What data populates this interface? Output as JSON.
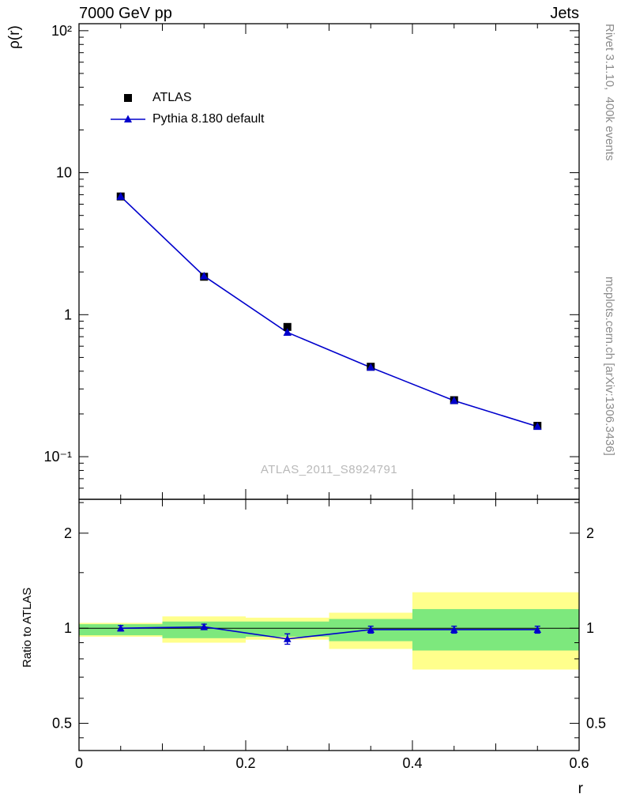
{
  "titles": {
    "left": "7000 GeV pp",
    "right": "Jets"
  },
  "side_texts": {
    "rivet": "Rivet 3.1.10,  400k events",
    "mcplots": "mcplots.cern.ch [arXiv:1306.3436]"
  },
  "watermark": "ATLAS_2011_S8924791",
  "axes": {
    "main_ylabel": "ρ(r)",
    "ratio_ylabel": "Ratio to ATLAS",
    "xlabel": "r"
  },
  "legend": {
    "items": [
      {
        "label": "ATLAS",
        "marker": "square",
        "color": "#000000"
      },
      {
        "label": "Pythia 8.180 default",
        "marker": "triangle-line",
        "color": "#0000cc"
      }
    ]
  },
  "colors": {
    "pythia_blue": "#0000cc",
    "atlas_black": "#000000",
    "band_yellow": "#ffff8c",
    "band_green": "#7de87d",
    "gray_text": "#8c8c8c",
    "watermark_gray": "#b9b9b9"
  },
  "chart_data": [
    {
      "type": "scatter",
      "panel": "main",
      "title": "7000 GeV pp",
      "xlabel": "r",
      "ylabel": "ρ(r)",
      "xlim": [
        0,
        0.6
      ],
      "yscale": "log",
      "ylim": [
        0.0501,
        112
      ],
      "x": [
        0.05,
        0.15,
        0.25,
        0.35,
        0.45,
        0.55
      ],
      "series": [
        {
          "name": "ATLAS",
          "marker": "square",
          "color": "#000000",
          "values": [
            6.8,
            1.85,
            0.82,
            0.43,
            0.25,
            0.165
          ]
        },
        {
          "name": "Pythia 8.180 default",
          "marker": "triangle",
          "color": "#0000cc",
          "line": true,
          "values": [
            6.8,
            1.87,
            0.75,
            0.425,
            0.248,
            0.163
          ]
        }
      ],
      "yticks": [
        {
          "value": 100,
          "label": "10²"
        },
        {
          "value": 10,
          "label": "10"
        },
        {
          "value": 1,
          "label": "1"
        },
        {
          "value": 0.1,
          "label": "10⁻¹"
        }
      ],
      "xticks": [
        {
          "value": 0,
          "label": "0"
        },
        {
          "value": 0.2,
          "label": "0.2"
        },
        {
          "value": 0.4,
          "label": "0.4"
        },
        {
          "value": 0.6,
          "label": "0.6"
        }
      ]
    },
    {
      "type": "ratio",
      "panel": "ratio",
      "ylabel": "Ratio to ATLAS",
      "yscale": "log",
      "ylim": [
        0.41,
        2.56
      ],
      "x": [
        0.05,
        0.15,
        0.25,
        0.35,
        0.45,
        0.55
      ],
      "values": [
        1.0,
        1.01,
        0.925,
        0.99,
        0.99,
        0.99
      ],
      "errors": [
        0.02,
        0.02,
        0.035,
        0.025,
        0.025,
        0.025
      ],
      "bins": [
        [
          0,
          0.1
        ],
        [
          0.1,
          0.2
        ],
        [
          0.2,
          0.3
        ],
        [
          0.3,
          0.4
        ],
        [
          0.4,
          0.5
        ],
        [
          0.5,
          0.6
        ]
      ],
      "band_yellow": [
        [
          0.94,
          1.04
        ],
        [
          0.9,
          1.09
        ],
        [
          0.92,
          1.08
        ],
        [
          0.86,
          1.12
        ],
        [
          0.74,
          1.3
        ],
        [
          0.74,
          1.3
        ]
      ],
      "band_green": [
        [
          0.95,
          1.03
        ],
        [
          0.93,
          1.05
        ],
        [
          0.94,
          1.05
        ],
        [
          0.91,
          1.07
        ],
        [
          0.85,
          1.15
        ],
        [
          0.85,
          1.15
        ]
      ],
      "yticks": [
        {
          "value": 2,
          "label": "2"
        },
        {
          "value": 1,
          "label": "1"
        },
        {
          "value": 0.5,
          "label": "0.5"
        }
      ]
    }
  ]
}
